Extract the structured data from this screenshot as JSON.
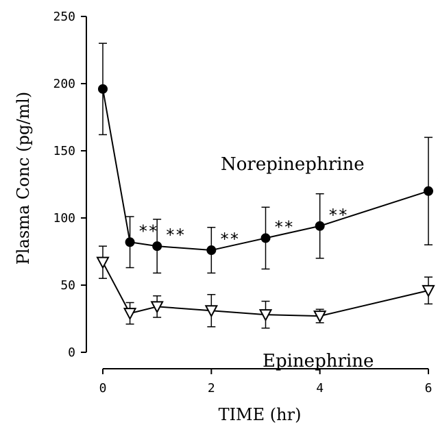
{
  "chart_data": {
    "type": "line",
    "xlabel": "TIME (hr)",
    "ylabel": "Plasma Conc (pg/ml)",
    "xlim": [
      0,
      6
    ],
    "ylim": [
      0,
      250
    ],
    "x_ticks": [
      0,
      2,
      4,
      6
    ],
    "y_ticks": [
      0,
      50,
      100,
      150,
      200,
      250
    ],
    "x_tick_labels": [
      "0",
      "2",
      "4",
      "6"
    ],
    "y_tick_labels": [
      "0",
      "50",
      "100",
      "150",
      "200",
      "250"
    ],
    "grid": false,
    "series": [
      {
        "name": "Norepinephrine",
        "marker": "filled-circle",
        "x": [
          0,
          0.5,
          1,
          2,
          3,
          4,
          6
        ],
        "y": [
          196,
          82,
          79,
          76,
          85,
          94,
          120
        ],
        "error": [
          34,
          19,
          20,
          17,
          23,
          24,
          40
        ],
        "significance": [
          "",
          "**",
          "**",
          "**",
          "**",
          "**",
          "*"
        ]
      },
      {
        "name": "Epinephrine",
        "marker": "open-triangle-down",
        "x": [
          0,
          0.5,
          1,
          2,
          3,
          4,
          6
        ],
        "y": [
          67,
          29,
          34,
          31,
          28,
          27,
          46
        ],
        "error": [
          12,
          8,
          8,
          12,
          10,
          5,
          10
        ],
        "significance": [
          "",
          "",
          "",
          "",
          "",
          "",
          ""
        ]
      }
    ],
    "colors": {
      "line": "#000000",
      "background": "#ffffff"
    }
  }
}
